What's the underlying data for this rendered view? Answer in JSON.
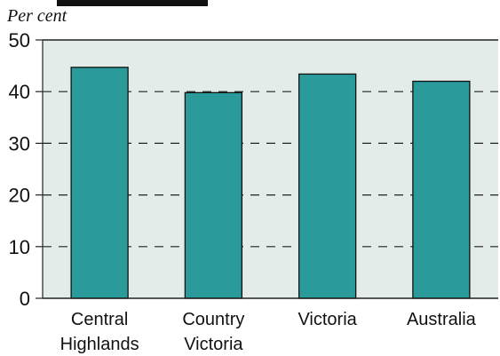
{
  "colors": {
    "plot_background": "#e3ece9",
    "bar_fill": "#2a9a9a",
    "bar_outline": "#111111",
    "grid": "#222222",
    "text": "#111111"
  },
  "chart_data": {
    "type": "bar",
    "unit_label": "Per cent",
    "categories": [
      [
        "Central",
        "Highlands"
      ],
      [
        "Country",
        "Victoria"
      ],
      [
        "Victoria"
      ],
      [
        "Australia"
      ]
    ],
    "values": [
      44.7,
      39.8,
      43.4,
      42.0
    ],
    "ylim": [
      0,
      50
    ],
    "yticks": [
      0,
      10,
      20,
      30,
      40,
      50
    ],
    "grid": "dashed horizontal",
    "legend": "none"
  }
}
